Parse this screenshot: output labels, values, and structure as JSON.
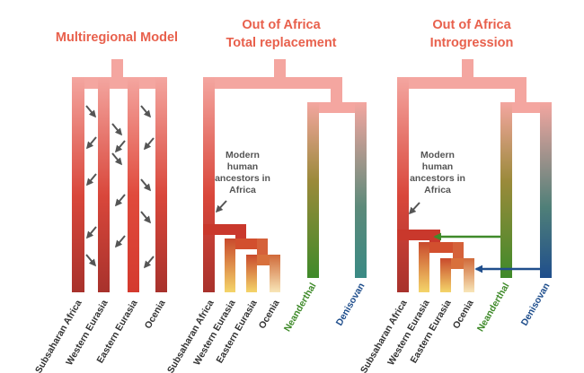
{
  "colors": {
    "title": "#e8604c",
    "trunk_light": "#f4a6a0",
    "trunk_dark": "#a8322c",
    "arrow_gray": "#555555",
    "leaf_text_default": "#333333",
    "neanderthal_green": "#3f8a2a",
    "denisovan_blue": "#1f4e8c"
  },
  "panels": [
    {
      "title_lines": [
        "Multiregional Model"
      ],
      "annotation_lines": [],
      "leaves": [
        "Subsaharan Africa",
        "Western Eurasia",
        "Eastern Eurasia",
        "Ocenia"
      ],
      "icons": [
        "down-left-arrow-icon",
        "down-right-arrow-icon"
      ]
    },
    {
      "title_lines": [
        "Out of Africa",
        "Total replacement"
      ],
      "annotation_lines": [
        "Modern",
        "human",
        "ancestors in",
        "Africa"
      ],
      "leaves": [
        "Subsaharan Africa",
        "Western Eurasia",
        "Eastern Eurasia",
        "Ocenia",
        "Neanderthal",
        "Denisovan"
      ]
    },
    {
      "title_lines": [
        "Out of Africa",
        "Introgression"
      ],
      "annotation_lines": [
        "Modern",
        "human",
        "ancestors in",
        "Africa"
      ],
      "leaves": [
        "Subsaharan Africa",
        "Western Eurasia",
        "Eastern Eurasia",
        "Ocenia",
        "Neanderthal",
        "Denisovan"
      ],
      "icons": [
        "neanderthal-introgression-arrow-icon",
        "denisovan-introgression-arrow-icon"
      ]
    }
  ]
}
